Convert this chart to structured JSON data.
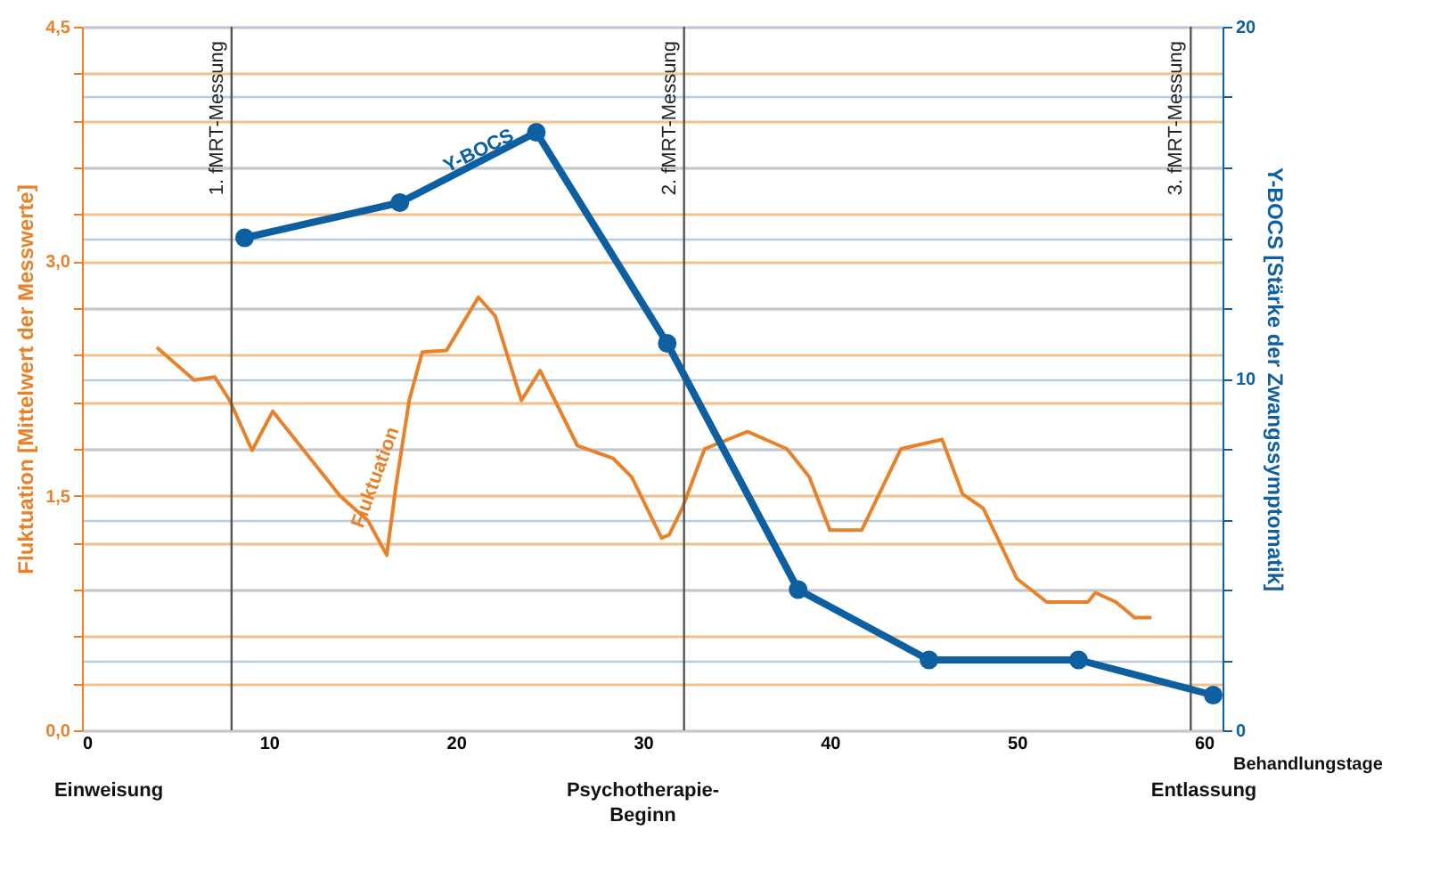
{
  "chart_data": {
    "type": "line",
    "ylabel": "Fluktuation [Mittelwert der Messwerte]",
    "y2label": "Y-BOCS [Stärke der Zwangssymptomatik]",
    "xlabel": "Behandlungstage",
    "xlim": [
      0,
      61
    ],
    "xticks": [
      0,
      10,
      20,
      30,
      40,
      50,
      60
    ],
    "ylim": [
      0,
      4.5
    ],
    "yticks": [
      {
        "value": 0,
        "label": "0,0"
      },
      {
        "value": 0.3,
        "label": null
      },
      {
        "value": 0.6,
        "label": null
      },
      {
        "value": 0.9,
        "label": null
      },
      {
        "value": 1.2,
        "label": null
      },
      {
        "value": 1.5,
        "label": "1,5"
      },
      {
        "value": 1.8,
        "label": null
      },
      {
        "value": 2.1,
        "label": null
      },
      {
        "value": 2.4,
        "label": null
      },
      {
        "value": 2.7,
        "label": null
      },
      {
        "value": 3.0,
        "label": "3,0"
      },
      {
        "value": 3.3,
        "label": null
      },
      {
        "value": 3.6,
        "label": null
      },
      {
        "value": 3.9,
        "label": null
      },
      {
        "value": 4.2,
        "label": null
      },
      {
        "value": 4.5,
        "label": "4,5"
      }
    ],
    "y2lim": [
      0,
      20
    ],
    "y2ticks": [
      0,
      {
        "value": 2,
        "label": null
      },
      {
        "value": 4,
        "label": null
      },
      {
        "value": 6,
        "label": null
      },
      {
        "value": 8,
        "label": null
      },
      10,
      {
        "value": 12,
        "label": null
      },
      {
        "value": 14,
        "label": null
      },
      {
        "value": 16,
        "label": null
      },
      {
        "value": 18,
        "label": null
      },
      20
    ],
    "grid": "y",
    "series": [
      {
        "name": "Fluktuation",
        "color": "#e8822a",
        "marker": "none",
        "x": [
          4.0,
          6.0,
          7.1,
          7.9,
          9.1,
          10.2,
          12.2,
          13.8,
          15.3,
          16.3,
          16.8,
          17.5,
          18.2,
          19.5,
          21.2,
          22.1,
          23.5,
          24.5,
          26.5,
          28.4,
          29.4,
          31.0,
          31.4,
          32.1,
          33.3,
          35.6,
          37.7,
          38.9,
          40.0,
          41.7,
          43.8,
          46.0,
          47.1,
          48.2,
          50.0,
          51.6,
          53.8,
          54.2,
          55.3,
          56.3,
          57.2
        ],
        "values": [
          2.45,
          2.24,
          2.26,
          2.11,
          1.79,
          2.04,
          1.74,
          1.5,
          1.34,
          1.12,
          1.57,
          2.11,
          2.42,
          2.43,
          2.77,
          2.65,
          2.11,
          2.3,
          1.82,
          1.74,
          1.62,
          1.23,
          1.25,
          1.42,
          1.8,
          1.91,
          1.8,
          1.62,
          1.28,
          1.28,
          1.8,
          1.86,
          1.51,
          1.42,
          0.97,
          0.82,
          0.82,
          0.88,
          0.82,
          0.72,
          0.72
        ]
      },
      {
        "name": "Y-BOCS",
        "color": "#0d5fa0",
        "axis": "y2",
        "marker": "circle",
        "x": [
          8.7,
          17.0,
          24.3,
          31.3,
          38.3,
          45.3,
          53.3,
          60.5
        ],
        "values": [
          14,
          15,
          17,
          11,
          4,
          2,
          2,
          1
        ]
      }
    ],
    "ref_lines": [
      {
        "axis": "x",
        "value": 8,
        "label": "1. fMRT-Messung",
        "color": "#555555"
      },
      {
        "axis": "x",
        "value": 32.2,
        "label": "2. fMRT-Messung",
        "color": "#555555"
      },
      {
        "axis": "x",
        "value": 59.3,
        "label": "3. fMRT-Messung",
        "color": "#555555"
      }
    ],
    "annotations": [
      "Einweisung",
      "Psychotherapie-\nBeginn",
      "Entlassung"
    ]
  }
}
